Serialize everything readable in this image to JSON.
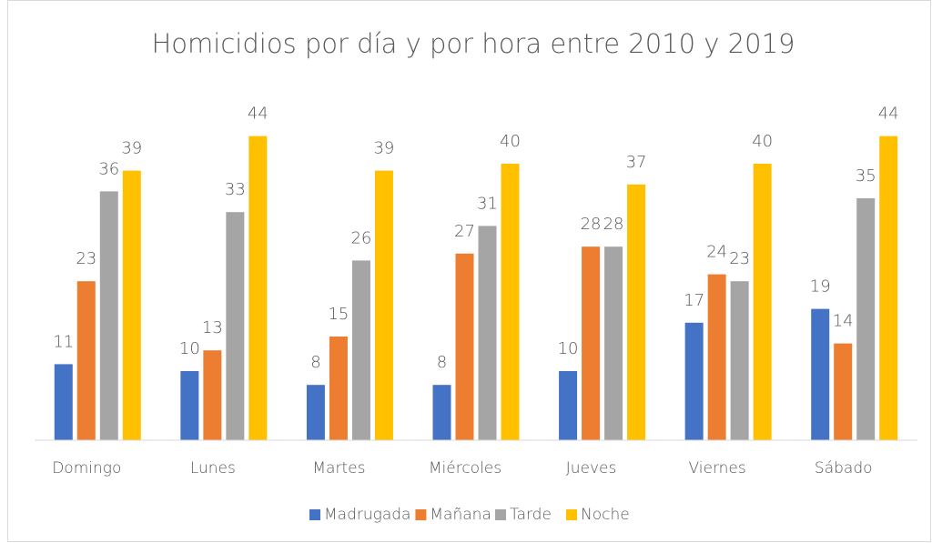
{
  "chart_data": {
    "type": "bar",
    "title": "Homicidios por día y por hora entre 2010 y 2019",
    "categories": [
      "Domingo",
      "Lunes",
      "Martes",
      "Miércoles",
      "Jueves",
      "Viernes",
      "Sábado"
    ],
    "series": [
      {
        "name": "Madrugada",
        "color": "#4472c4",
        "values": [
          11,
          10,
          8,
          8,
          10,
          17,
          19
        ]
      },
      {
        "name": "Mañana",
        "color": "#ed7d31",
        "values": [
          23,
          13,
          15,
          27,
          28,
          24,
          14
        ]
      },
      {
        "name": "Tarde",
        "color": "#a5a5a5",
        "values": [
          36,
          33,
          26,
          31,
          28,
          23,
          35
        ]
      },
      {
        "name": "Noche",
        "color": "#ffc000",
        "values": [
          39,
          44,
          39,
          40,
          37,
          40,
          44
        ]
      }
    ],
    "ylim": [
      0,
      50
    ],
    "legend": "bottom"
  }
}
